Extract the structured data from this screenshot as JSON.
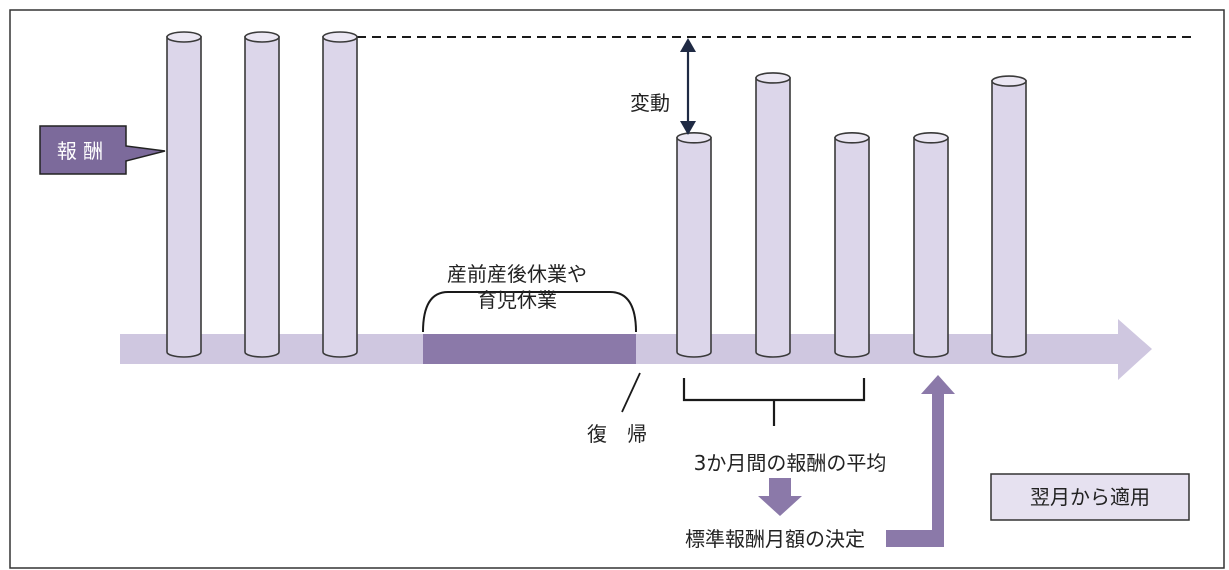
{
  "labels": {
    "remuneration": "報 酬",
    "fluctuation": "変動",
    "leave_line1": "産前産後休業や",
    "leave_line2": "育児休業",
    "return": "復　帰",
    "average": "3か月間の報酬の平均",
    "decision": "標準報酬月額の決定",
    "apply": "翌月から適用"
  },
  "bars": {
    "before_leave": [
      {
        "relative_height": 1.0
      },
      {
        "relative_height": 1.0
      },
      {
        "relative_height": 1.0
      }
    ],
    "after_return": [
      {
        "relative_height": 0.68
      },
      {
        "relative_height": 0.87
      },
      {
        "relative_height": 0.68
      },
      {
        "relative_height": 0.68
      },
      {
        "relative_height": 0.86
      }
    ]
  },
  "colors": {
    "bar_fill": "#dcd6ea",
    "bar_top": "#ebe7f3",
    "bar_stroke": "#3a3a3a",
    "timeline": "#cfc7e0",
    "leave_block": "#8b79a9",
    "label_box": "#7c6a9b",
    "label_box_text": "#ffffff",
    "arrow": "#8b79a9",
    "apply_box": "#e6e1f0",
    "dark_line": "#1f2a44",
    "frame": "#333333"
  }
}
